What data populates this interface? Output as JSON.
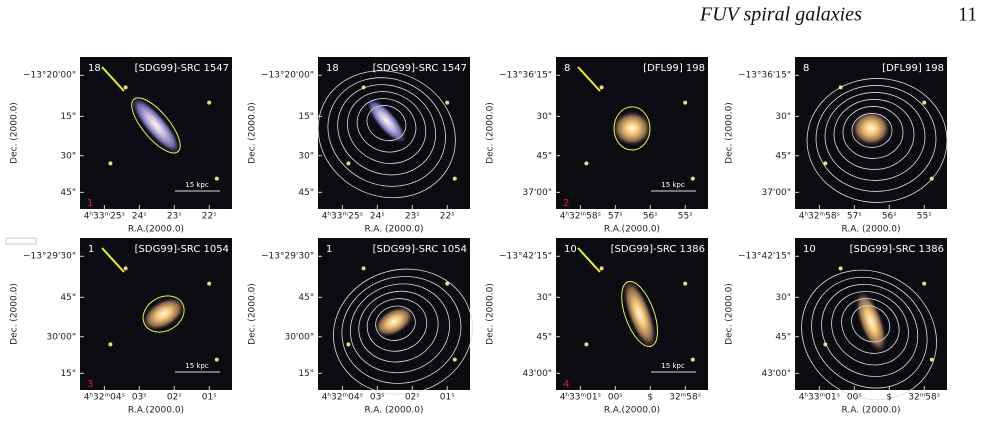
{
  "header": {
    "title": "FUV spiral galaxies",
    "page_number": "11"
  },
  "panels": [
    {
      "number": "18",
      "name": "[SDG99]-SRC 1547",
      "index": "1",
      "scale": "15 kpc",
      "dec_ticks": [
        "−13°20'00\"",
        "15\"",
        "30\"",
        "45\""
      ],
      "ra_ticks": [
        "4ʰ33ᵐ25ˢ",
        "24ˢ",
        "23ˢ",
        "22ˢ"
      ],
      "xlabel": "R.A.(2000.0)",
      "ylabel": "Dec. (2000.0)"
    },
    {
      "number": "18",
      "name": "[SDG99]-SRC 1547",
      "dec_ticks": [
        "−13°20'00\"",
        "15\"",
        "30\"",
        "45\""
      ],
      "ra_ticks": [
        "4ʰ33ᵐ25ˢ",
        "24ˢ",
        "23ˢ",
        "22ˢ"
      ],
      "xlabel": "R.A. (2000.0)",
      "ylabel": "Dec. (2000.0)"
    },
    {
      "number": "8",
      "name": "[DFL99] 198",
      "index": "2",
      "scale": "15 kpc",
      "dec_ticks": [
        "−13°36'15\"",
        "30\"",
        "45\"",
        "37'00\""
      ],
      "ra_ticks": [
        "4ʰ32ᵐ58ˢ",
        "57ˢ",
        "56ˢ",
        "55ˢ"
      ],
      "xlabel": "R.A.(2000.0)",
      "ylabel": "Dec. (2000.0)"
    },
    {
      "number": "8",
      "name": "[DFL99] 198",
      "dec_ticks": [
        "−13°36'15\"",
        "30\"",
        "45\"",
        "37'00\""
      ],
      "ra_ticks": [
        "4ʰ32ᵐ58ˢ",
        "57ˢ",
        "56ˢ",
        "55ˢ"
      ],
      "xlabel": "R.A. (2000.0)",
      "ylabel": "Dec. (2000.0)"
    },
    {
      "number": "1",
      "name": "[SDG99]-SRC 1054",
      "index": "3",
      "scale": "15 kpc",
      "dec_ticks": [
        "−13°29'30\"",
        "45\"",
        "30'00\"",
        "15\""
      ],
      "ra_ticks": [
        "4ʰ32ᵐ04ˢ",
        "03ˢ",
        "02ˢ",
        "01ˢ"
      ],
      "xlabel": "R.A.(2000.0)",
      "ylabel": "Dec. (2000.0)"
    },
    {
      "number": "1",
      "name": "[SDG99]-SRC 1054",
      "dec_ticks": [
        "−13°29'30\"",
        "45\"",
        "30'00\"",
        "15\""
      ],
      "ra_ticks": [
        "4ʰ32ᵐ04ˢ",
        "03ˢ",
        "02ˢ",
        "01ˢ"
      ],
      "xlabel": "R.A. (2000.0)",
      "ylabel": "Dec. (2000.0)"
    },
    {
      "number": "10",
      "name": "[SDG99]-SRC 1386",
      "index": "4",
      "scale": "15 kpc",
      "dec_ticks": [
        "−13°42'15\"",
        "30\"",
        "45\"",
        "43'00\""
      ],
      "ra_ticks": [
        "4ʰ33ᵐ01ˢ",
        "00ˢ",
        "$",
        "32ᵐ58ˢ"
      ],
      "xlabel": "R.A.(2000.0)",
      "ylabel": "Dec. (2000.0)"
    },
    {
      "number": "10",
      "name": "[SDG99]-SRC 1386",
      "dec_ticks": [
        "−13°42'15\"",
        "30\"",
        "45\"",
        "43'00\""
      ],
      "ra_ticks": [
        "4ʰ33ᵐ01ˢ",
        "00ˢ",
        "$",
        "32ᵐ58ˢ"
      ],
      "xlabel": "R.A. (2000.0)",
      "ylabel": "Dec. (2000.0)"
    }
  ]
}
